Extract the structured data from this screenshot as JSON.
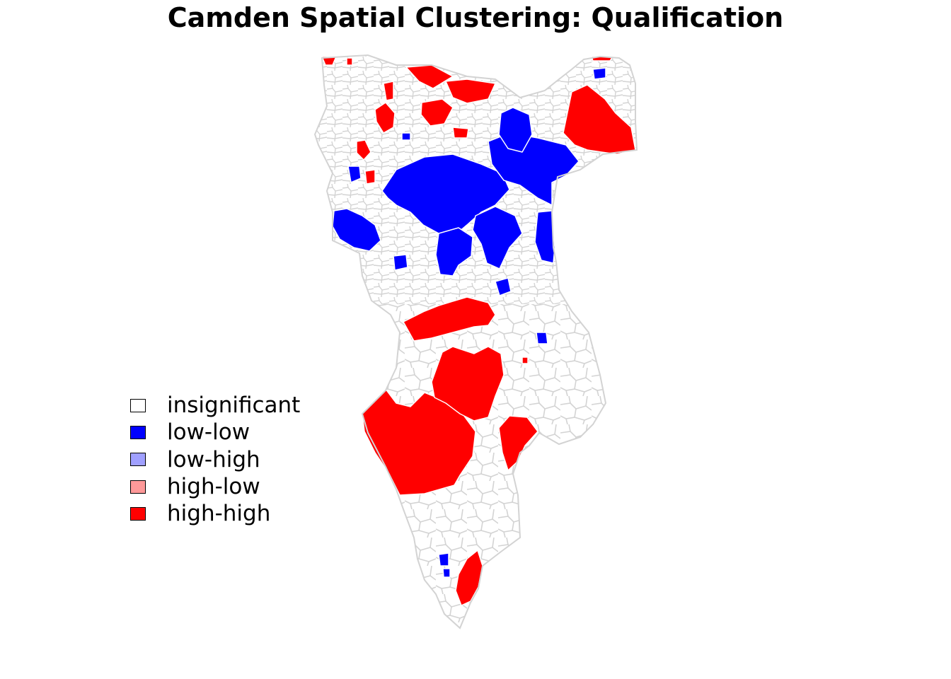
{
  "title": "Camden Spatial Clustering: Qualification",
  "legend": {
    "items": [
      {
        "label": "insignificant",
        "color": "#FFFFFF"
      },
      {
        "label": "low-low",
        "color": "#0000FF"
      },
      {
        "label": "low-high",
        "color": "#A0A0FF"
      },
      {
        "label": "high-low",
        "color": "#FF9999"
      },
      {
        "label": "high-high",
        "color": "#FF0000"
      }
    ]
  },
  "colors": {
    "boundary": "#D3D3D3",
    "cluster_boundary": "#FFFFFF"
  }
}
